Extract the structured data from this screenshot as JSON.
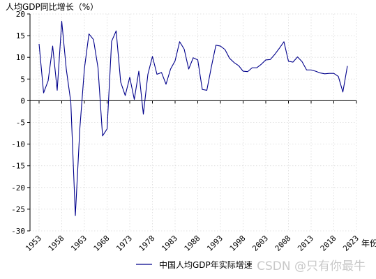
{
  "colors": {
    "series": "#00008b",
    "grid": "#d9d9d9",
    "axis": "#000000",
    "watermark": "#c8c8c8"
  },
  "watermark": "CSDN @只有你最牛",
  "chart_data": {
    "type": "line",
    "title": "",
    "ylabel": "人均GDP同比增长（%）",
    "xlabel": "年份",
    "ylim": [
      -30,
      20
    ],
    "xlim": [
      1951,
      2023
    ],
    "grid": true,
    "legend_position": "bottom",
    "y_ticks": [
      -30,
      -25,
      -20,
      -15,
      -10,
      -5,
      0,
      5,
      10,
      15,
      20
    ],
    "x_ticks": [
      1953,
      1958,
      1963,
      1968,
      1973,
      1978,
      1983,
      1988,
      1993,
      1998,
      2003,
      2008,
      2013,
      2018,
      2023
    ],
    "series": [
      {
        "name": "中国人均GDP年实际增速",
        "x": [
          1953,
          1954,
          1955,
          1956,
          1957,
          1958,
          1959,
          1960,
          1961,
          1962,
          1963,
          1964,
          1965,
          1966,
          1967,
          1968,
          1969,
          1970,
          1971,
          1972,
          1973,
          1974,
          1975,
          1976,
          1977,
          1978,
          1979,
          1980,
          1981,
          1982,
          1983,
          1984,
          1985,
          1986,
          1987,
          1988,
          1989,
          1990,
          1991,
          1992,
          1993,
          1994,
          1995,
          1996,
          1997,
          1998,
          1999,
          2000,
          2001,
          2002,
          2003,
          2004,
          2005,
          2006,
          2007,
          2008,
          2009,
          2010,
          2011,
          2012,
          2013,
          2014,
          2015,
          2016,
          2017,
          2018,
          2019,
          2020,
          2021
        ],
        "y": [
          13.1,
          1.8,
          4.6,
          12.6,
          2.4,
          18.3,
          7.3,
          -0.3,
          -26.5,
          -6.3,
          7.4,
          15.4,
          14.1,
          7.6,
          -8.1,
          -6.5,
          13.7,
          16.1,
          4.3,
          1.2,
          5.4,
          0.3,
          6.8,
          -3.1,
          6.1,
          10.2,
          6.1,
          6.5,
          3.8,
          7.3,
          9.2,
          13.6,
          11.9,
          7.3,
          9.9,
          9.4,
          2.6,
          2.4,
          7.8,
          12.8,
          12.6,
          11.8,
          9.8,
          8.8,
          8.1,
          6.8,
          6.7,
          7.6,
          7.6,
          8.4,
          9.4,
          9.5,
          10.7,
          12.1,
          13.6,
          9.1,
          8.9,
          10.1,
          9.0,
          7.1,
          7.1,
          6.8,
          6.4,
          6.2,
          6.3,
          6.3,
          5.6,
          2.0,
          8.0
        ]
      }
    ]
  }
}
